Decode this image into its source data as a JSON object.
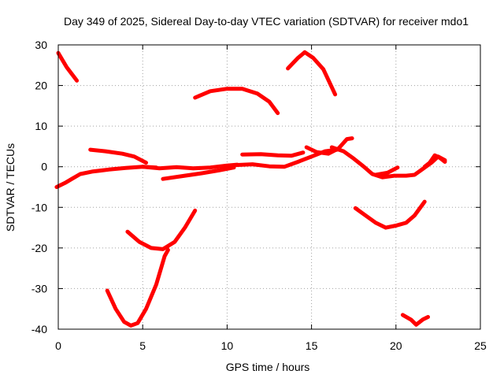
{
  "chart_data": {
    "type": "line",
    "title": "Day 349 of 2025, Sidereal Day-to-day VTEC variation (SDTVAR) for receiver mdo1",
    "xlabel": "GPS time / hours",
    "ylabel": "SDTVAR / TECUs",
    "xlim": [
      0,
      25
    ],
    "ylim": [
      -40,
      30
    ],
    "xticks": [
      "0",
      "5",
      "10",
      "15",
      "20",
      "25"
    ],
    "yticks": [
      "30",
      "20",
      "10",
      "0",
      "-10",
      "-20",
      "-30",
      "-40"
    ],
    "grid": true,
    "legend": "none",
    "color": "#ff0000",
    "series": [
      {
        "points": [
          [
            0.0,
            28
          ],
          [
            0.5,
            24.5
          ],
          [
            1.1,
            21.2
          ]
        ]
      },
      {
        "points": [
          [
            -0.1,
            -5
          ],
          [
            0.4,
            -4
          ],
          [
            0.8,
            -3
          ],
          [
            1.3,
            -1.8
          ],
          [
            2.0,
            -1.2
          ],
          [
            3.0,
            -0.7
          ],
          [
            4.0,
            -0.3
          ],
          [
            5.0,
            0.0
          ],
          [
            5.8,
            -0.2
          ]
        ]
      },
      {
        "points": [
          [
            1.9,
            4.2
          ],
          [
            2.8,
            3.8
          ],
          [
            3.8,
            3.2
          ],
          [
            4.5,
            2.5
          ],
          [
            5.2,
            1.0
          ]
        ]
      },
      {
        "points": [
          [
            2.9,
            -30.5
          ],
          [
            3.4,
            -35
          ],
          [
            3.9,
            -38.2
          ],
          [
            4.3,
            -39.1
          ],
          [
            4.7,
            -38.5
          ],
          [
            5.2,
            -35
          ],
          [
            5.8,
            -29
          ],
          [
            6.3,
            -22
          ],
          [
            6.5,
            -20.5
          ]
        ]
      },
      {
        "points": [
          [
            4.1,
            -16
          ],
          [
            4.8,
            -18.5
          ],
          [
            5.5,
            -20
          ],
          [
            6.2,
            -20.3
          ],
          [
            6.9,
            -18.5
          ],
          [
            7.5,
            -15
          ],
          [
            8.1,
            -10.8
          ]
        ]
      },
      {
        "points": [
          [
            5.0,
            0.0
          ],
          [
            6.0,
            -0.4
          ],
          [
            7.0,
            -0.1
          ],
          [
            8.0,
            -0.4
          ],
          [
            9.0,
            -0.2
          ],
          [
            10.0,
            0.3
          ],
          [
            10.6,
            0.5
          ]
        ]
      },
      {
        "points": [
          [
            6.2,
            -3.0
          ],
          [
            7.5,
            -2.2
          ],
          [
            8.5,
            -1.6
          ],
          [
            9.5,
            -0.9
          ],
          [
            10.4,
            -0.2
          ]
        ]
      },
      {
        "points": [
          [
            8.1,
            17.0
          ],
          [
            9.0,
            18.6
          ],
          [
            10.0,
            19.2
          ],
          [
            10.9,
            19.2
          ],
          [
            11.8,
            18.0
          ],
          [
            12.5,
            16.0
          ],
          [
            13.0,
            13.2
          ]
        ]
      },
      {
        "points": [
          [
            10.4,
            0.4
          ],
          [
            11.5,
            0.6
          ],
          [
            12.5,
            0.1
          ],
          [
            13.4,
            0.0
          ],
          [
            14.2,
            1.2
          ],
          [
            15.0,
            2.5
          ],
          [
            15.8,
            3.8
          ],
          [
            16.5,
            4.2
          ]
        ]
      },
      {
        "points": [
          [
            10.9,
            3.0
          ],
          [
            12.0,
            3.1
          ],
          [
            13.0,
            2.8
          ],
          [
            13.8,
            2.7
          ],
          [
            14.5,
            3.5
          ]
        ]
      },
      {
        "points": [
          [
            13.6,
            24.2
          ],
          [
            14.2,
            26.8
          ],
          [
            14.6,
            28.2
          ],
          [
            15.1,
            26.8
          ],
          [
            15.7,
            24.0
          ],
          [
            16.4,
            17.8
          ]
        ]
      },
      {
        "points": [
          [
            14.7,
            4.8
          ],
          [
            15.3,
            3.6
          ],
          [
            16.0,
            3.2
          ],
          [
            16.6,
            4.5
          ],
          [
            17.1,
            6.8
          ],
          [
            17.4,
            7.0
          ]
        ]
      },
      {
        "points": [
          [
            16.2,
            4.8
          ],
          [
            16.9,
            3.8
          ],
          [
            17.5,
            2.0
          ],
          [
            18.1,
            0.0
          ],
          [
            18.6,
            -1.8
          ],
          [
            19.2,
            -2.6
          ],
          [
            19.9,
            -2.2
          ],
          [
            20.6,
            -2.2
          ],
          [
            21.1,
            -2.0
          ],
          [
            21.6,
            -0.5
          ],
          [
            22.1,
            1.0
          ],
          [
            22.5,
            2.5
          ],
          [
            22.9,
            1.6
          ]
        ]
      },
      {
        "points": [
          [
            18.8,
            -2.0
          ],
          [
            19.5,
            -1.5
          ],
          [
            20.1,
            -0.2
          ]
        ]
      },
      {
        "points": [
          [
            17.6,
            -10.2
          ],
          [
            18.2,
            -12.0
          ],
          [
            18.8,
            -13.8
          ],
          [
            19.4,
            -15.0
          ],
          [
            20.0,
            -14.5
          ],
          [
            20.6,
            -13.8
          ],
          [
            21.1,
            -12.0
          ],
          [
            21.7,
            -8.6
          ]
        ]
      },
      {
        "points": [
          [
            20.4,
            -36.5
          ],
          [
            20.9,
            -37.7
          ],
          [
            21.2,
            -38.9
          ],
          [
            21.6,
            -37.6
          ],
          [
            21.9,
            -37.0
          ]
        ]
      },
      {
        "points": [
          [
            21.7,
            0.0
          ],
          [
            22.0,
            1.0
          ],
          [
            22.3,
            2.8
          ],
          [
            22.6,
            2.2
          ],
          [
            22.9,
            1.2
          ]
        ]
      }
    ]
  }
}
